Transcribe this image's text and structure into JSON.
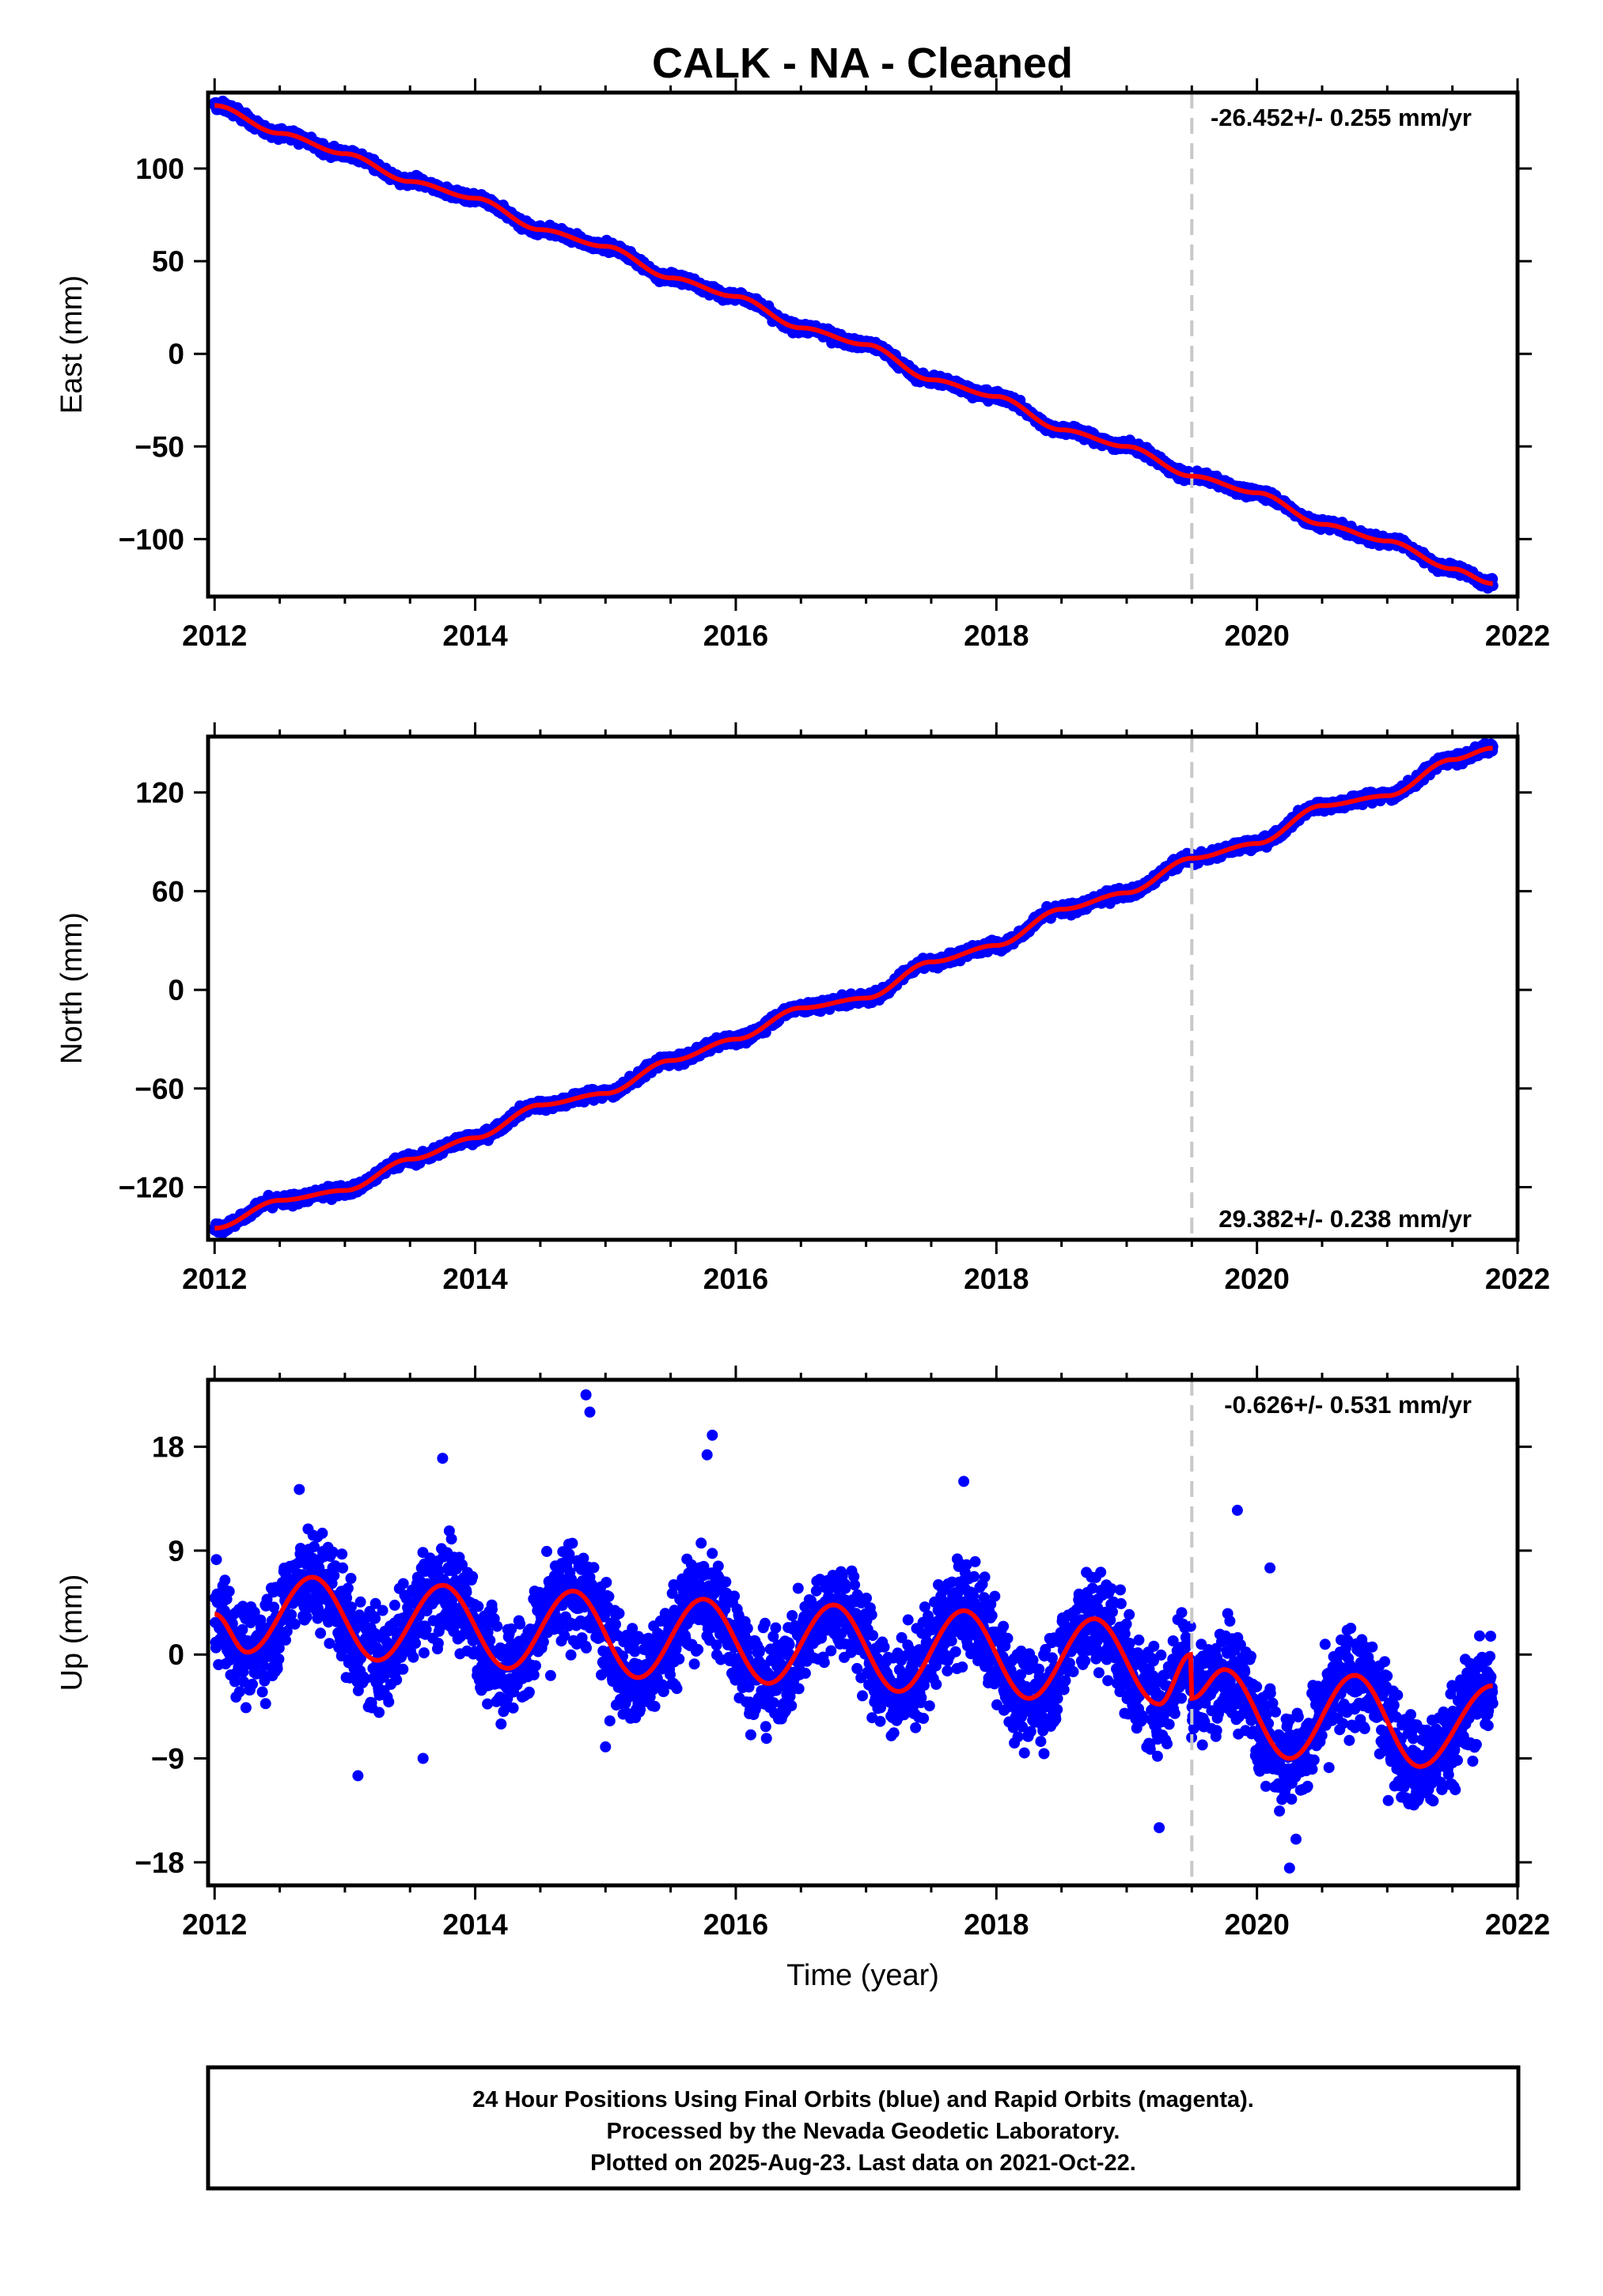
{
  "figure": {
    "title": "CALK  - NA - Cleaned",
    "footer_lines": [
      "24 Hour Positions Using Final Orbits (blue) and Rapid Orbits (magenta).",
      "Processed by the Nevada Geodetic Laboratory.",
      "Plotted on 2025-Aug-23. Last data on 2021-Oct-22."
    ],
    "colors": {
      "points": "#0000ff",
      "fit": "#ff0000",
      "break_line": "#c8c8c8",
      "frame": "#000000"
    }
  },
  "chart_data": [
    {
      "type": "scatter",
      "name": "east",
      "ylabel": "East (mm)",
      "xlabel": "",
      "rate_label": "-26.452+/- 0.255 mm/yr",
      "rate_position": "top-right",
      "xlim": [
        2011.95,
        2022.0
      ],
      "ylim": [
        -131,
        141
      ],
      "xticks": [
        2012,
        2014,
        2016,
        2018,
        2020,
        2022
      ],
      "yticks": [
        100,
        50,
        0,
        -50,
        -100
      ],
      "ytick_labels": [
        "100",
        "50",
        "0",
        "−50",
        "−100"
      ],
      "break_x": 2019.5,
      "data_start": 2012.0,
      "data_end": 2021.81,
      "fit_points": [
        [
          2012.0,
          134
        ],
        [
          2012.5,
          119
        ],
        [
          2013.0,
          108
        ],
        [
          2013.5,
          93
        ],
        [
          2014.0,
          84
        ],
        [
          2014.5,
          67
        ],
        [
          2015.0,
          58
        ],
        [
          2015.5,
          41
        ],
        [
          2016.0,
          31
        ],
        [
          2016.5,
          14
        ],
        [
          2017.0,
          5
        ],
        [
          2017.5,
          -14
        ],
        [
          2018.0,
          -23
        ],
        [
          2018.5,
          -41
        ],
        [
          2019.0,
          -50
        ],
        [
          2019.5,
          -66
        ],
        [
          2020.0,
          -75
        ],
        [
          2020.5,
          -92
        ],
        [
          2021.0,
          -101
        ],
        [
          2021.5,
          -116
        ],
        [
          2021.81,
          -124
        ]
      ],
      "scatter_noise_mm": 1.8,
      "grid": false
    },
    {
      "type": "scatter",
      "name": "north",
      "ylabel": "North (mm)",
      "xlabel": "",
      "rate_label": "29.382+/- 0.238 mm/yr",
      "rate_position": "bottom-right",
      "xlim": [
        2011.95,
        2022.0
      ],
      "ylim": [
        -152,
        154
      ],
      "xticks": [
        2012,
        2014,
        2016,
        2018,
        2020,
        2022
      ],
      "yticks": [
        120,
        60,
        0,
        -60,
        -120
      ],
      "ytick_labels": [
        "120",
        "60",
        "0",
        "−60",
        "−120"
      ],
      "break_x": 2019.5,
      "data_start": 2012.0,
      "data_end": 2021.81,
      "fit_points": [
        [
          2012.0,
          -145
        ],
        [
          2012.5,
          -128
        ],
        [
          2013.0,
          -122
        ],
        [
          2013.5,
          -103
        ],
        [
          2014.0,
          -90
        ],
        [
          2014.5,
          -70
        ],
        [
          2015.0,
          -63
        ],
        [
          2015.5,
          -43
        ],
        [
          2016.0,
          -30
        ],
        [
          2016.5,
          -11
        ],
        [
          2017.0,
          -5
        ],
        [
          2017.5,
          17
        ],
        [
          2018.0,
          27
        ],
        [
          2018.5,
          49
        ],
        [
          2019.0,
          59
        ],
        [
          2019.5,
          80
        ],
        [
          2020.0,
          89
        ],
        [
          2020.5,
          112
        ],
        [
          2021.0,
          118
        ],
        [
          2021.5,
          140
        ],
        [
          2021.81,
          147
        ]
      ],
      "scatter_noise_mm": 2.2,
      "grid": false
    },
    {
      "type": "scatter",
      "name": "up",
      "ylabel": "Up (mm)",
      "xlabel": "Time (year)",
      "rate_label": "-0.626+/- 0.531 mm/yr",
      "rate_position": "top-right",
      "xlim": [
        2011.95,
        2022.0
      ],
      "ylim": [
        -20.0,
        23.8
      ],
      "xticks": [
        2012,
        2014,
        2016,
        2018,
        2020,
        2022
      ],
      "yticks": [
        18,
        9,
        0,
        -9,
        -18
      ],
      "ytick_labels": [
        "18",
        "9",
        "0",
        "−9",
        "−18"
      ],
      "break_x": 2019.5,
      "data_start": 2012.0,
      "data_end": 2021.81,
      "fit_points": [
        [
          2012.0,
          3.5
        ],
        [
          2012.25,
          0.2
        ],
        [
          2012.75,
          6.7
        ],
        [
          2013.25,
          -0.5
        ],
        [
          2013.75,
          6.0
        ],
        [
          2014.25,
          -1.2
        ],
        [
          2014.75,
          5.5
        ],
        [
          2015.25,
          -2.0
        ],
        [
          2015.75,
          4.8
        ],
        [
          2016.25,
          -2.5
        ],
        [
          2016.75,
          4.3
        ],
        [
          2017.25,
          -3.2
        ],
        [
          2017.75,
          3.8
        ],
        [
          2018.25,
          -3.8
        ],
        [
          2018.75,
          3.1
        ],
        [
          2019.25,
          -4.3
        ],
        [
          2019.49,
          0.0
        ],
        [
          2019.5,
          -3.8
        ],
        [
          2019.75,
          -1.3
        ],
        [
          2020.25,
          -9.0
        ],
        [
          2020.75,
          -1.8
        ],
        [
          2021.25,
          -9.7
        ],
        [
          2021.81,
          -2.7
        ]
      ],
      "scatter_noise_mm": 3.0,
      "outliers": [
        [
          2014.85,
          22.5
        ],
        [
          2014.88,
          21.0
        ],
        [
          2015.82,
          19.0
        ],
        [
          2013.75,
          17.0
        ],
        [
          2015.78,
          17.3
        ],
        [
          2012.65,
          14.3
        ],
        [
          2017.75,
          15.0
        ],
        [
          2019.85,
          12.5
        ],
        [
          2020.1,
          7.5
        ],
        [
          2013.1,
          -10.5
        ],
        [
          2013.6,
          -9.0
        ],
        [
          2019.25,
          -15.0
        ],
        [
          2020.25,
          -18.5
        ],
        [
          2020.3,
          -16.0
        ],
        [
          2021.2,
          -13.0
        ],
        [
          2015.0,
          -8.0
        ]
      ],
      "grid": false
    }
  ]
}
